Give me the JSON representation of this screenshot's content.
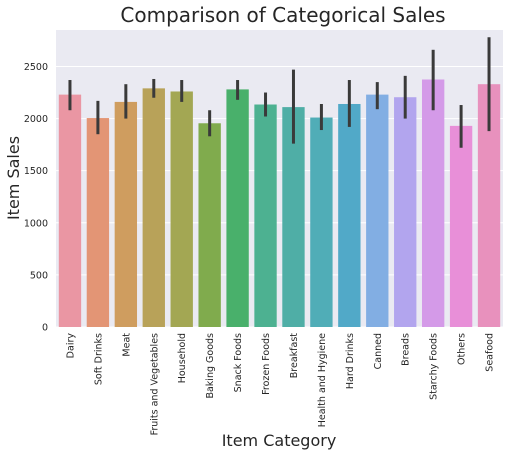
{
  "chart_data": {
    "type": "bar",
    "title": "Comparison of Categorical Sales",
    "xlabel": "Item Category",
    "ylabel": "Item Sales",
    "ylim": [
      0,
      2850
    ],
    "yticks": [
      0,
      500,
      1000,
      1500,
      2000,
      2500
    ],
    "grid": true,
    "categories": [
      "Dairy",
      "Soft Drinks",
      "Meat",
      "Fruits and Vegetables",
      "Household",
      "Baking Goods",
      "Snack Foods",
      "Frozen Foods",
      "Breakfast",
      "Health and Hygiene",
      "Hard Drinks",
      "Canned",
      "Breads",
      "Starchy Foods",
      "Others",
      "Seafood"
    ],
    "values": [
      2230,
      2005,
      2160,
      2290,
      2260,
      1955,
      2280,
      2135,
      2110,
      2010,
      2140,
      2230,
      2205,
      2375,
      1930,
      2330
    ],
    "ci_low": [
      2080,
      1850,
      2000,
      2200,
      2160,
      1830,
      2180,
      2020,
      1760,
      1890,
      1920,
      2090,
      2000,
      2080,
      1720,
      1880
    ],
    "ci_high": [
      2370,
      2170,
      2330,
      2380,
      2370,
      2080,
      2370,
      2250,
      2470,
      2140,
      2370,
      2350,
      2410,
      2660,
      2130,
      2780
    ],
    "colors": [
      "#ea96a3",
      "#e39575",
      "#cf9d5f",
      "#b8a259",
      "#a3a753",
      "#80ab4d",
      "#49b06b",
      "#4db191",
      "#4faea6",
      "#50adb7",
      "#51a9c8",
      "#82aee3",
      "#b2a5ee",
      "#d49ae8",
      "#e88fd8",
      "#e891bd"
    ],
    "error_color": "#3a3a3a",
    "background": "#eaeaf2"
  }
}
